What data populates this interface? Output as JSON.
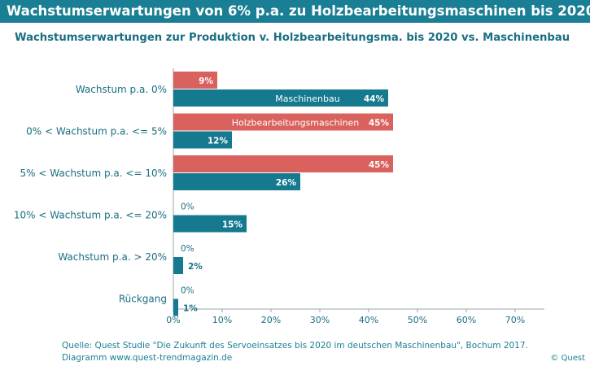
{
  "header": {
    "title": "Wachstumserwartungen von 6% p.a.  zu Holzbearbeitungsmaschinen bis 2020"
  },
  "footer": {
    "source_line1": "Quelle: Quest Studie \"Die Zukunft des Servoeinsatzes bis 2020 im  deutschen Maschinenbau\", Bochum 2017.",
    "source_line2": "Diagramm  www.quest-trendmagazin.de",
    "copyright": "© Quest"
  },
  "colors": {
    "banner": "#1a7f95",
    "holz": "#d9625e",
    "maschinenbau": "#157a90",
    "text": "#1a6e82"
  },
  "chart_data": {
    "type": "bar",
    "orientation": "horizontal",
    "title": "Wachstumserwartungen zur Produktion v. Holzbearbeitungsma. bis 2020 vs. Maschinenbau",
    "categories": [
      "Wachstum p.a. 0%",
      "0% < Wachstum p.a. <= 5%",
      "5% < Wachstum p.a. <= 10%",
      "10% < Wachstum p.a. <= 20%",
      "Wachstum p.a. > 20%",
      "Rückgang"
    ],
    "series": [
      {
        "name": "Holzbearbeitungsmaschinen",
        "values": [
          9,
          45,
          45,
          0,
          0,
          0
        ],
        "labels": [
          "9%",
          "45%",
          "45%",
          "0%",
          "0%",
          "0%"
        ]
      },
      {
        "name": "Maschinenbau",
        "values": [
          44,
          12,
          26,
          15,
          2,
          1
        ],
        "labels": [
          "44%",
          "12%",
          "26%",
          "15%",
          "2%",
          "1%"
        ]
      }
    ],
    "xlim": [
      0,
      75
    ],
    "xticks": [
      0,
      10,
      20,
      30,
      40,
      50,
      60,
      70
    ],
    "xtick_labels": [
      "0%",
      "10%",
      "20%",
      "30%",
      "40%",
      "50%",
      "60%",
      "70%"
    ],
    "series_labels_inside": [
      "Holzbearbeitungsmaschinen",
      "Maschinenbau"
    ],
    "grid": false
  }
}
